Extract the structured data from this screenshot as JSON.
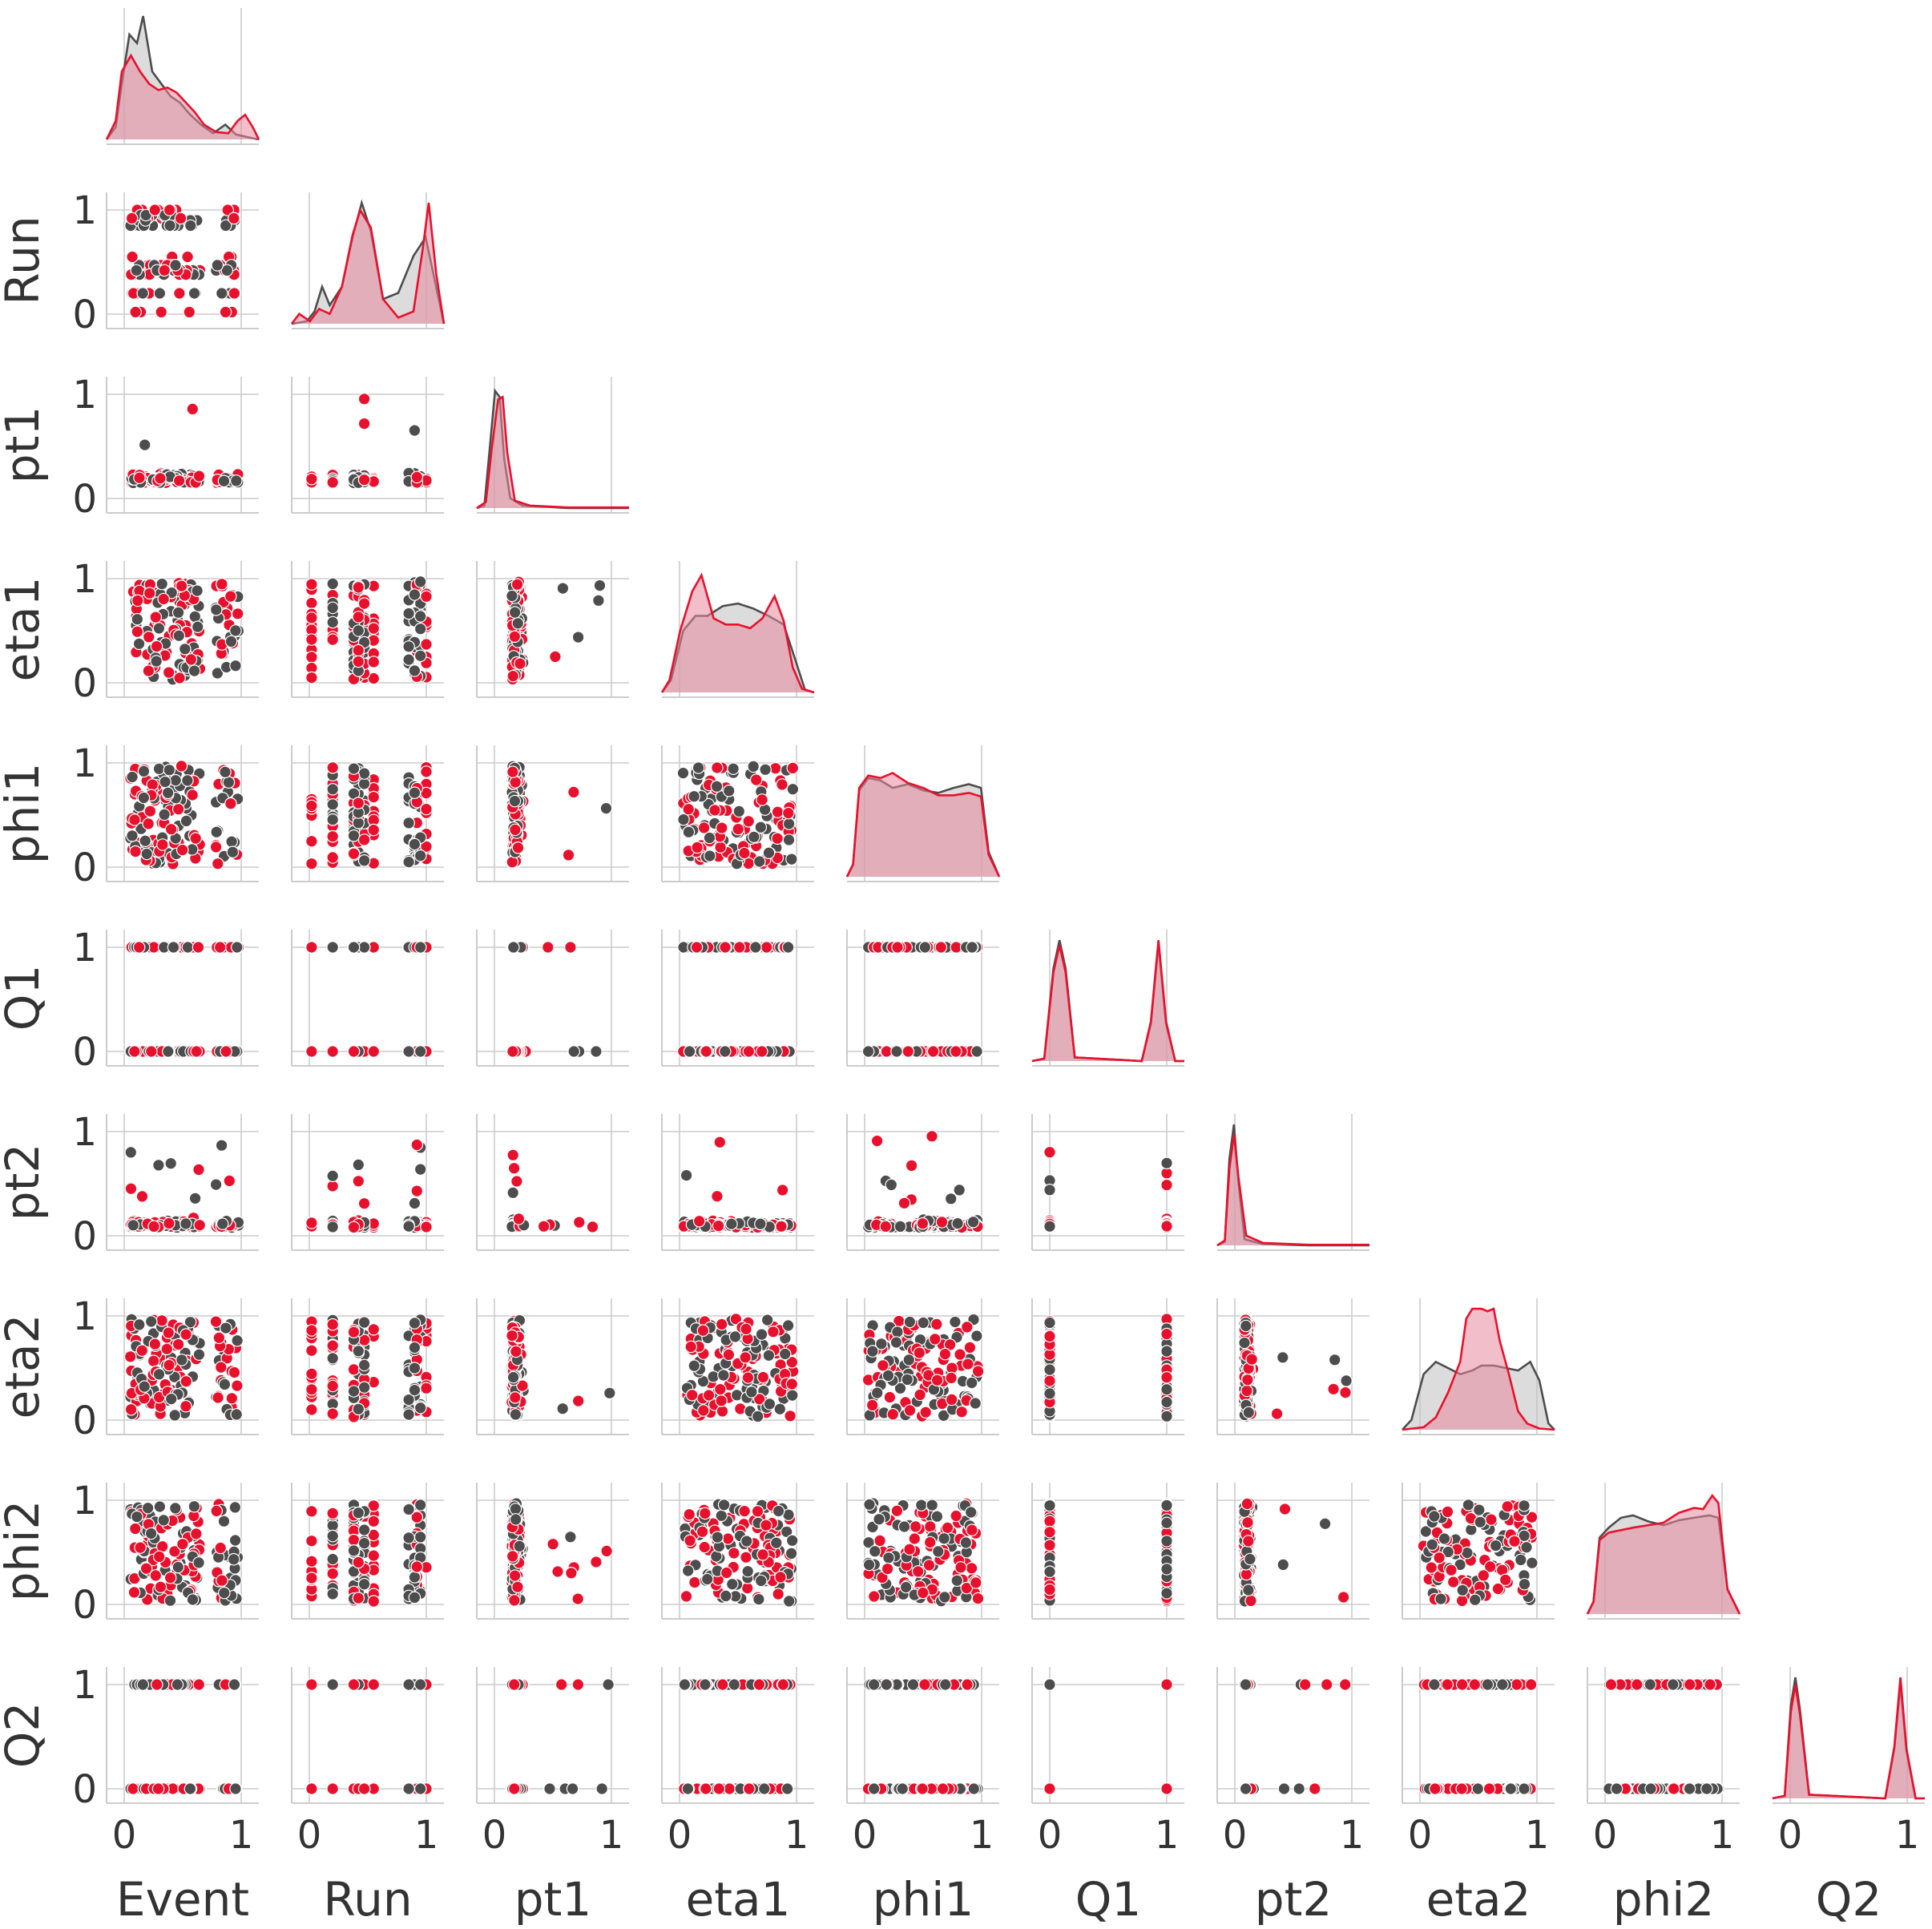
{
  "chart_data": {
    "type": "scatter",
    "kind": "pairplot-lower-triangle",
    "variables": [
      "Event",
      "Run",
      "pt1",
      "eta1",
      "phi1",
      "Q1",
      "pt2",
      "eta2",
      "phi2",
      "Q2"
    ],
    "tick_labels": [
      "0",
      "1"
    ],
    "axis_range": [
      0,
      1
    ],
    "diagonal": "kde",
    "offdiagonal": "scatter",
    "grid": true,
    "legend": "none",
    "hue_colors": [
      "#4d4d4d",
      "#e8112d"
    ],
    "fill_colors": [
      "#bfbfbf",
      "#e8889c"
    ],
    "kde_curves": {
      "Event": [
        [
          [
            0.0,
            0.0
          ],
          [
            0.06,
            0.1
          ],
          [
            0.1,
            0.45
          ],
          [
            0.15,
            0.85
          ],
          [
            0.2,
            0.78
          ],
          [
            0.24,
            1.0
          ],
          [
            0.3,
            0.55
          ],
          [
            0.36,
            0.45
          ],
          [
            0.42,
            0.35
          ],
          [
            0.48,
            0.3
          ],
          [
            0.55,
            0.2
          ],
          [
            0.62,
            0.12
          ],
          [
            0.7,
            0.05
          ],
          [
            0.78,
            0.12
          ],
          [
            0.85,
            0.04
          ],
          [
            0.92,
            0.02
          ],
          [
            1.0,
            0.0
          ]
        ],
        [
          [
            0.0,
            0.0
          ],
          [
            0.06,
            0.15
          ],
          [
            0.1,
            0.55
          ],
          [
            0.16,
            0.68
          ],
          [
            0.22,
            0.55
          ],
          [
            0.28,
            0.45
          ],
          [
            0.34,
            0.4
          ],
          [
            0.4,
            0.42
          ],
          [
            0.46,
            0.38
          ],
          [
            0.52,
            0.3
          ],
          [
            0.58,
            0.22
          ],
          [
            0.64,
            0.12
          ],
          [
            0.72,
            0.06
          ],
          [
            0.8,
            0.05
          ],
          [
            0.86,
            0.15
          ],
          [
            0.91,
            0.2
          ],
          [
            0.96,
            0.1
          ],
          [
            1.0,
            0.0
          ]
        ]
      ],
      "Run": [
        [
          [
            0.0,
            0.0
          ],
          [
            0.1,
            0.02
          ],
          [
            0.15,
            0.1
          ],
          [
            0.2,
            0.3
          ],
          [
            0.25,
            0.15
          ],
          [
            0.33,
            0.3
          ],
          [
            0.4,
            0.7
          ],
          [
            0.46,
            0.98
          ],
          [
            0.52,
            0.75
          ],
          [
            0.6,
            0.2
          ],
          [
            0.7,
            0.25
          ],
          [
            0.8,
            0.55
          ],
          [
            0.88,
            0.7
          ],
          [
            0.94,
            0.35
          ],
          [
            1.0,
            0.0
          ]
        ],
        [
          [
            0.0,
            0.0
          ],
          [
            0.05,
            0.08
          ],
          [
            0.12,
            0.02
          ],
          [
            0.18,
            0.12
          ],
          [
            0.25,
            0.08
          ],
          [
            0.33,
            0.3
          ],
          [
            0.4,
            0.72
          ],
          [
            0.45,
            0.92
          ],
          [
            0.52,
            0.78
          ],
          [
            0.6,
            0.2
          ],
          [
            0.7,
            0.05
          ],
          [
            0.8,
            0.1
          ],
          [
            0.86,
            0.6
          ],
          [
            0.9,
            0.98
          ],
          [
            0.95,
            0.4
          ],
          [
            1.0,
            0.0
          ]
        ]
      ],
      "pt1": [
        [
          [
            0.0,
            0.0
          ],
          [
            0.05,
            0.02
          ],
          [
            0.09,
            0.55
          ],
          [
            0.12,
            0.95
          ],
          [
            0.15,
            0.9
          ],
          [
            0.18,
            0.4
          ],
          [
            0.22,
            0.08
          ],
          [
            0.3,
            0.02
          ],
          [
            0.6,
            0.0
          ],
          [
            1.0,
            0.0
          ]
        ],
        [
          [
            0.0,
            0.0
          ],
          [
            0.06,
            0.05
          ],
          [
            0.1,
            0.5
          ],
          [
            0.14,
            0.88
          ],
          [
            0.17,
            0.9
          ],
          [
            0.2,
            0.45
          ],
          [
            0.25,
            0.06
          ],
          [
            0.35,
            0.02
          ],
          [
            0.6,
            0.005
          ],
          [
            1.0,
            0.005
          ]
        ]
      ],
      "eta1": [
        [
          [
            0.0,
            0.0
          ],
          [
            0.06,
            0.1
          ],
          [
            0.14,
            0.5
          ],
          [
            0.22,
            0.62
          ],
          [
            0.3,
            0.62
          ],
          [
            0.4,
            0.7
          ],
          [
            0.5,
            0.72
          ],
          [
            0.6,
            0.68
          ],
          [
            0.7,
            0.62
          ],
          [
            0.8,
            0.55
          ],
          [
            0.88,
            0.25
          ],
          [
            0.94,
            0.02
          ],
          [
            1.0,
            0.0
          ]
        ],
        [
          [
            0.0,
            0.0
          ],
          [
            0.05,
            0.1
          ],
          [
            0.12,
            0.5
          ],
          [
            0.2,
            0.82
          ],
          [
            0.26,
            0.95
          ],
          [
            0.34,
            0.6
          ],
          [
            0.42,
            0.55
          ],
          [
            0.5,
            0.55
          ],
          [
            0.58,
            0.52
          ],
          [
            0.66,
            0.6
          ],
          [
            0.74,
            0.78
          ],
          [
            0.8,
            0.58
          ],
          [
            0.86,
            0.2
          ],
          [
            0.92,
            0.03
          ],
          [
            1.0,
            0.0
          ]
        ]
      ],
      "phi1": [
        [
          [
            0.0,
            0.0
          ],
          [
            0.04,
            0.1
          ],
          [
            0.08,
            0.7
          ],
          [
            0.14,
            0.8
          ],
          [
            0.22,
            0.78
          ],
          [
            0.3,
            0.72
          ],
          [
            0.4,
            0.75
          ],
          [
            0.5,
            0.7
          ],
          [
            0.6,
            0.68
          ],
          [
            0.7,
            0.72
          ],
          [
            0.8,
            0.75
          ],
          [
            0.88,
            0.72
          ],
          [
            0.93,
            0.2
          ],
          [
            1.0,
            0.0
          ]
        ],
        [
          [
            0.0,
            0.0
          ],
          [
            0.04,
            0.1
          ],
          [
            0.08,
            0.72
          ],
          [
            0.14,
            0.82
          ],
          [
            0.22,
            0.8
          ],
          [
            0.3,
            0.84
          ],
          [
            0.4,
            0.76
          ],
          [
            0.5,
            0.72
          ],
          [
            0.6,
            0.66
          ],
          [
            0.7,
            0.66
          ],
          [
            0.8,
            0.68
          ],
          [
            0.88,
            0.65
          ],
          [
            0.93,
            0.18
          ],
          [
            1.0,
            0.0
          ]
        ]
      ],
      "Q1": [
        [
          [
            0.0,
            0.0
          ],
          [
            0.08,
            0.02
          ],
          [
            0.14,
            0.75
          ],
          [
            0.18,
            0.98
          ],
          [
            0.22,
            0.75
          ],
          [
            0.28,
            0.03
          ],
          [
            0.72,
            0.0
          ],
          [
            0.78,
            0.3
          ],
          [
            0.83,
            0.95
          ],
          [
            0.88,
            0.3
          ],
          [
            0.94,
            0.0
          ],
          [
            1.0,
            0.0
          ]
        ],
        [
          [
            0.0,
            0.0
          ],
          [
            0.08,
            0.02
          ],
          [
            0.14,
            0.72
          ],
          [
            0.18,
            0.94
          ],
          [
            0.22,
            0.72
          ],
          [
            0.28,
            0.03
          ],
          [
            0.72,
            0.0
          ],
          [
            0.78,
            0.32
          ],
          [
            0.83,
            0.98
          ],
          [
            0.88,
            0.32
          ],
          [
            0.94,
            0.0
          ],
          [
            1.0,
            0.0
          ]
        ]
      ],
      "pt2": [
        [
          [
            0.0,
            0.0
          ],
          [
            0.05,
            0.03
          ],
          [
            0.08,
            0.7
          ],
          [
            0.11,
            0.98
          ],
          [
            0.14,
            0.5
          ],
          [
            0.18,
            0.05
          ],
          [
            0.3,
            0.01
          ],
          [
            0.6,
            0.0
          ],
          [
            1.0,
            0.0
          ]
        ],
        [
          [
            0.0,
            0.0
          ],
          [
            0.05,
            0.04
          ],
          [
            0.08,
            0.62
          ],
          [
            0.11,
            0.9
          ],
          [
            0.14,
            0.55
          ],
          [
            0.19,
            0.08
          ],
          [
            0.3,
            0.02
          ],
          [
            0.6,
            0.005
          ],
          [
            1.0,
            0.005
          ]
        ]
      ],
      "eta2": [
        [
          [
            0.0,
            0.0
          ],
          [
            0.06,
            0.08
          ],
          [
            0.14,
            0.45
          ],
          [
            0.22,
            0.55
          ],
          [
            0.3,
            0.5
          ],
          [
            0.38,
            0.45
          ],
          [
            0.46,
            0.48
          ],
          [
            0.52,
            0.52
          ],
          [
            0.6,
            0.52
          ],
          [
            0.68,
            0.5
          ],
          [
            0.76,
            0.48
          ],
          [
            0.84,
            0.55
          ],
          [
            0.9,
            0.4
          ],
          [
            0.96,
            0.05
          ],
          [
            1.0,
            0.0
          ]
        ],
        [
          [
            0.0,
            0.0
          ],
          [
            0.14,
            0.02
          ],
          [
            0.22,
            0.1
          ],
          [
            0.3,
            0.3
          ],
          [
            0.38,
            0.55
          ],
          [
            0.42,
            0.9
          ],
          [
            0.46,
            0.98
          ],
          [
            0.52,
            0.98
          ],
          [
            0.56,
            0.96
          ],
          [
            0.6,
            0.98
          ],
          [
            0.64,
            0.72
          ],
          [
            0.7,
            0.45
          ],
          [
            0.76,
            0.15
          ],
          [
            0.82,
            0.05
          ],
          [
            0.9,
            0.01
          ],
          [
            1.0,
            0.0
          ]
        ]
      ],
      "phi2": [
        [
          [
            0.0,
            0.0
          ],
          [
            0.04,
            0.1
          ],
          [
            0.08,
            0.62
          ],
          [
            0.14,
            0.7
          ],
          [
            0.22,
            0.78
          ],
          [
            0.3,
            0.8
          ],
          [
            0.4,
            0.75
          ],
          [
            0.5,
            0.72
          ],
          [
            0.6,
            0.76
          ],
          [
            0.7,
            0.78
          ],
          [
            0.8,
            0.8
          ],
          [
            0.86,
            0.78
          ],
          [
            0.92,
            0.2
          ],
          [
            1.0,
            0.0
          ]
        ],
        [
          [
            0.0,
            0.0
          ],
          [
            0.04,
            0.1
          ],
          [
            0.08,
            0.6
          ],
          [
            0.14,
            0.66
          ],
          [
            0.22,
            0.68
          ],
          [
            0.3,
            0.7
          ],
          [
            0.4,
            0.72
          ],
          [
            0.5,
            0.74
          ],
          [
            0.6,
            0.82
          ],
          [
            0.7,
            0.86
          ],
          [
            0.76,
            0.85
          ],
          [
            0.82,
            0.96
          ],
          [
            0.86,
            0.9
          ],
          [
            0.92,
            0.2
          ],
          [
            1.0,
            0.0
          ]
        ]
      ],
      "Q2": [
        [
          [
            0.0,
            0.0
          ],
          [
            0.08,
            0.02
          ],
          [
            0.12,
            0.75
          ],
          [
            0.15,
            0.98
          ],
          [
            0.18,
            0.72
          ],
          [
            0.24,
            0.03
          ],
          [
            0.74,
            0.0
          ],
          [
            0.8,
            0.4
          ],
          [
            0.84,
            0.92
          ],
          [
            0.88,
            0.38
          ],
          [
            0.94,
            0.0
          ],
          [
            1.0,
            0.0
          ]
        ],
        [
          [
            0.0,
            0.0
          ],
          [
            0.08,
            0.02
          ],
          [
            0.12,
            0.7
          ],
          [
            0.15,
            0.92
          ],
          [
            0.18,
            0.68
          ],
          [
            0.24,
            0.03
          ],
          [
            0.74,
            0.0
          ],
          [
            0.8,
            0.42
          ],
          [
            0.84,
            0.98
          ],
          [
            0.88,
            0.4
          ],
          [
            0.94,
            0.0
          ],
          [
            1.0,
            0.0
          ]
        ]
      ]
    }
  }
}
